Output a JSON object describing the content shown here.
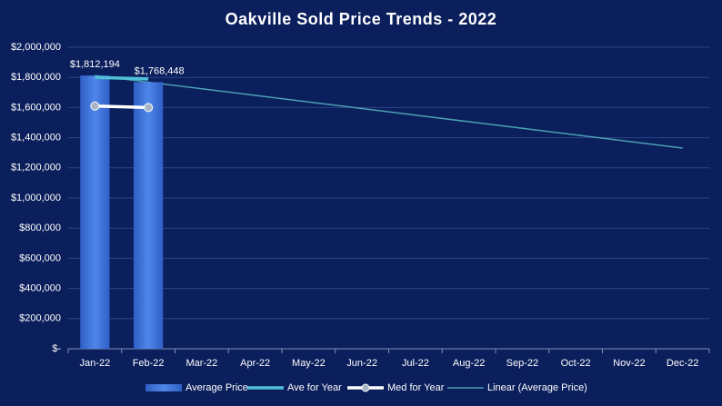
{
  "chart_data": {
    "type": "bar",
    "title": "Oakville  Sold Price Trends  - 2022",
    "categories": [
      "Jan-22",
      "Feb-22",
      "Mar-22",
      "Apr-22",
      "May-22",
      "Jun-22",
      "Jul-22",
      "Aug-22",
      "Sep-22",
      "Oct-22",
      "Nov-22",
      "Dec-22"
    ],
    "series": [
      {
        "name": "Average Price",
        "type": "bar",
        "color": "#3a6fd8",
        "values": [
          1812194,
          1768448,
          null,
          null,
          null,
          null,
          null,
          null,
          null,
          null,
          null,
          null
        ],
        "value_labels": [
          "$1,812,194",
          "$1,768,448",
          null,
          null,
          null,
          null,
          null,
          null,
          null,
          null,
          null,
          null
        ]
      },
      {
        "name": "Ave for Year",
        "type": "line",
        "color": "#4fc0d8",
        "values": [
          1800000,
          1790000,
          null,
          null,
          null,
          null,
          null,
          null,
          null,
          null,
          null,
          null
        ]
      },
      {
        "name": "Med for Year",
        "type": "line",
        "color": "#ffffff",
        "marker": true,
        "values": [
          1610000,
          1600000,
          null,
          null,
          null,
          null,
          null,
          null,
          null,
          null,
          null,
          null
        ]
      },
      {
        "name": "Linear (Average Price)",
        "type": "line",
        "color": "#4a9fb4",
        "values": [
          1812194,
          1768448,
          1724702,
          1680956,
          1637210,
          1593464,
          1549718,
          1505972,
          1462226,
          1418480,
          1374734,
          1330988
        ]
      }
    ],
    "ylim": [
      0,
      2000000
    ],
    "yticks": [
      {
        "value": 0,
        "label": "$-"
      },
      {
        "value": 200000,
        "label": "$200,000"
      },
      {
        "value": 400000,
        "label": "$400,000"
      },
      {
        "value": 600000,
        "label": "$600,000"
      },
      {
        "value": 800000,
        "label": "$800,000"
      },
      {
        "value": 1000000,
        "label": "$1,000,000"
      },
      {
        "value": 1200000,
        "label": "$1,200,000"
      },
      {
        "value": 1400000,
        "label": "$1,400,000"
      },
      {
        "value": 1600000,
        "label": "$1,600,000"
      },
      {
        "value": 1800000,
        "label": "$1,800,000"
      },
      {
        "value": 2000000,
        "label": "$2,000,000"
      }
    ],
    "grid": true,
    "legend": "bottom"
  }
}
